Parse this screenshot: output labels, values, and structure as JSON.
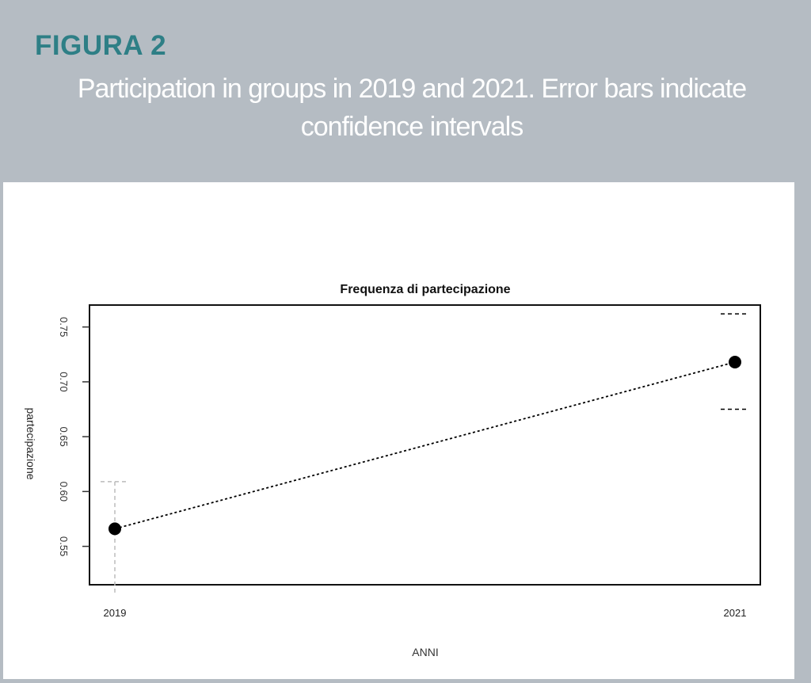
{
  "figure": {
    "label": "FIGURA 2",
    "caption": "Participation in groups in 2019 and 2021. Error bars indicate confidence intervals"
  },
  "chart_data": {
    "type": "line",
    "title": "Frequenza di partecipazione",
    "xlabel": "ANNI",
    "ylabel": "partecipazione",
    "categories": [
      "2019",
      "2021"
    ],
    "values": [
      0.566,
      0.718
    ],
    "ci_lower": [
      0.51,
      0.675
    ],
    "ci_upper": [
      0.609,
      0.762
    ],
    "yticks": [
      0.55,
      0.6,
      0.65,
      0.7,
      0.75
    ],
    "ytick_labels": [
      "0.55",
      "0.60",
      "0.65",
      "0.70",
      "0.75"
    ],
    "ylim": [
      0.515,
      0.77
    ],
    "grid": false,
    "colors": {
      "series": "#000000",
      "ci_2019": "#bbbbbb",
      "ci_2021": "#000000"
    }
  }
}
